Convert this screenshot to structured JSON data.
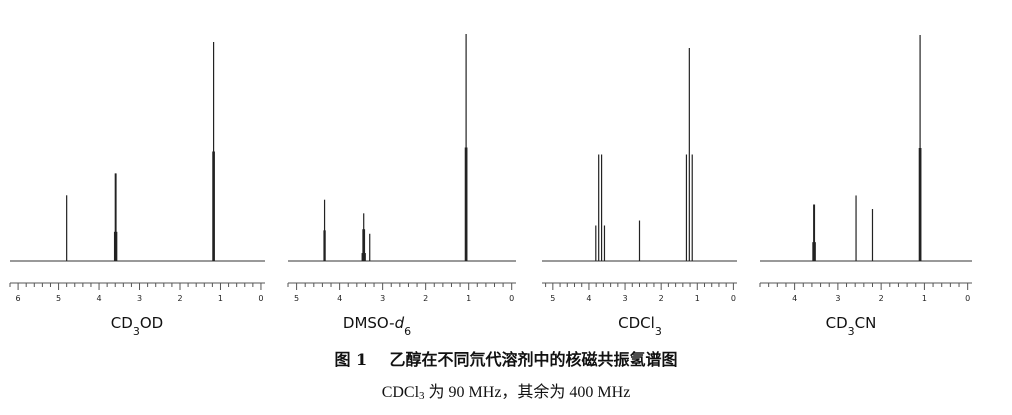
{
  "figure": {
    "title_prefix": "图 1",
    "title_text": "乙醇在不同氘代溶剂中的核磁共振氢谱图",
    "subtitle": {
      "part1": "CDCl",
      "sub": "3",
      "part2": " 为 90 MHz，其余为 400 MHz"
    }
  },
  "chart_data": [
    {
      "type": "line",
      "panel_label": {
        "main": "CD",
        "sub": "3",
        "tail": "OD",
        "italic": "",
        "italic_sub": ""
      },
      "xlabel": "",
      "xlim": [
        6.2,
        -0.1
      ],
      "x_reversed": true,
      "xticks": [
        6,
        5,
        4,
        3,
        2,
        1,
        0
      ],
      "y_axis_visible": false,
      "grid": false,
      "peaks": [
        {
          "ppm": 4.8,
          "height": 0.3,
          "mult": 1,
          "J": 0
        },
        {
          "ppm": 3.59,
          "height": 0.4,
          "mult": 4,
          "J": 0.018
        },
        {
          "ppm": 1.17,
          "height": 1.0,
          "mult": 3,
          "J": 0.018
        }
      ]
    },
    {
      "type": "line",
      "panel_label": {
        "main": "DMSO-",
        "sub": "",
        "tail": "",
        "italic": "d",
        "italic_sub": "6"
      },
      "xlabel": "",
      "xlim": [
        5.2,
        -0.1
      ],
      "x_reversed": true,
      "xticks": [
        5,
        4,
        3,
        2,
        1,
        0
      ],
      "y_axis_visible": false,
      "grid": false,
      "peaks": [
        {
          "ppm": 4.35,
          "height": 0.27,
          "mult": 3,
          "J": 0.013
        },
        {
          "ppm": 3.44,
          "height": 0.21,
          "mult": 5,
          "J": 0.018
        },
        {
          "ppm": 3.3,
          "height": 0.12,
          "mult": 1,
          "J": 0
        },
        {
          "ppm": 1.06,
          "height": 1.0,
          "mult": 3,
          "J": 0.018
        }
      ]
    },
    {
      "type": "line",
      "panel_label": {
        "main": "CDCl",
        "sub": "3",
        "tail": "",
        "italic": "",
        "italic_sub": ""
      },
      "xlabel": "",
      "xlim": [
        5.3,
        -0.1
      ],
      "x_reversed": true,
      "xticks": [
        5,
        4,
        3,
        2,
        1,
        0
      ],
      "y_axis_visible": false,
      "grid": false,
      "peaks": [
        {
          "ppm": 3.69,
          "height": 0.5,
          "mult": 4,
          "J": 0.08
        },
        {
          "ppm": 2.6,
          "height": 0.19,
          "mult": 1,
          "J": 0
        },
        {
          "ppm": 1.22,
          "height": 1.0,
          "mult": 3,
          "J": 0.08
        }
      ]
    },
    {
      "type": "line",
      "panel_label": {
        "main": "CD",
        "sub": "3",
        "tail": "CN",
        "italic": "",
        "italic_sub": ""
      },
      "xlabel": "",
      "xlim": [
        4.8,
        -0.1
      ],
      "x_reversed": true,
      "xticks": [
        4,
        3,
        2,
        1,
        0
      ],
      "y_axis_visible": false,
      "grid": false,
      "peaks": [
        {
          "ppm": 3.55,
          "height": 0.25,
          "mult": 4,
          "J": 0.018
        },
        {
          "ppm": 2.58,
          "height": 0.29,
          "mult": 1,
          "J": 0
        },
        {
          "ppm": 2.2,
          "height": 0.23,
          "mult": 1,
          "J": 0
        },
        {
          "ppm": 1.1,
          "height": 1.0,
          "mult": 3,
          "J": 0.018
        }
      ]
    }
  ]
}
